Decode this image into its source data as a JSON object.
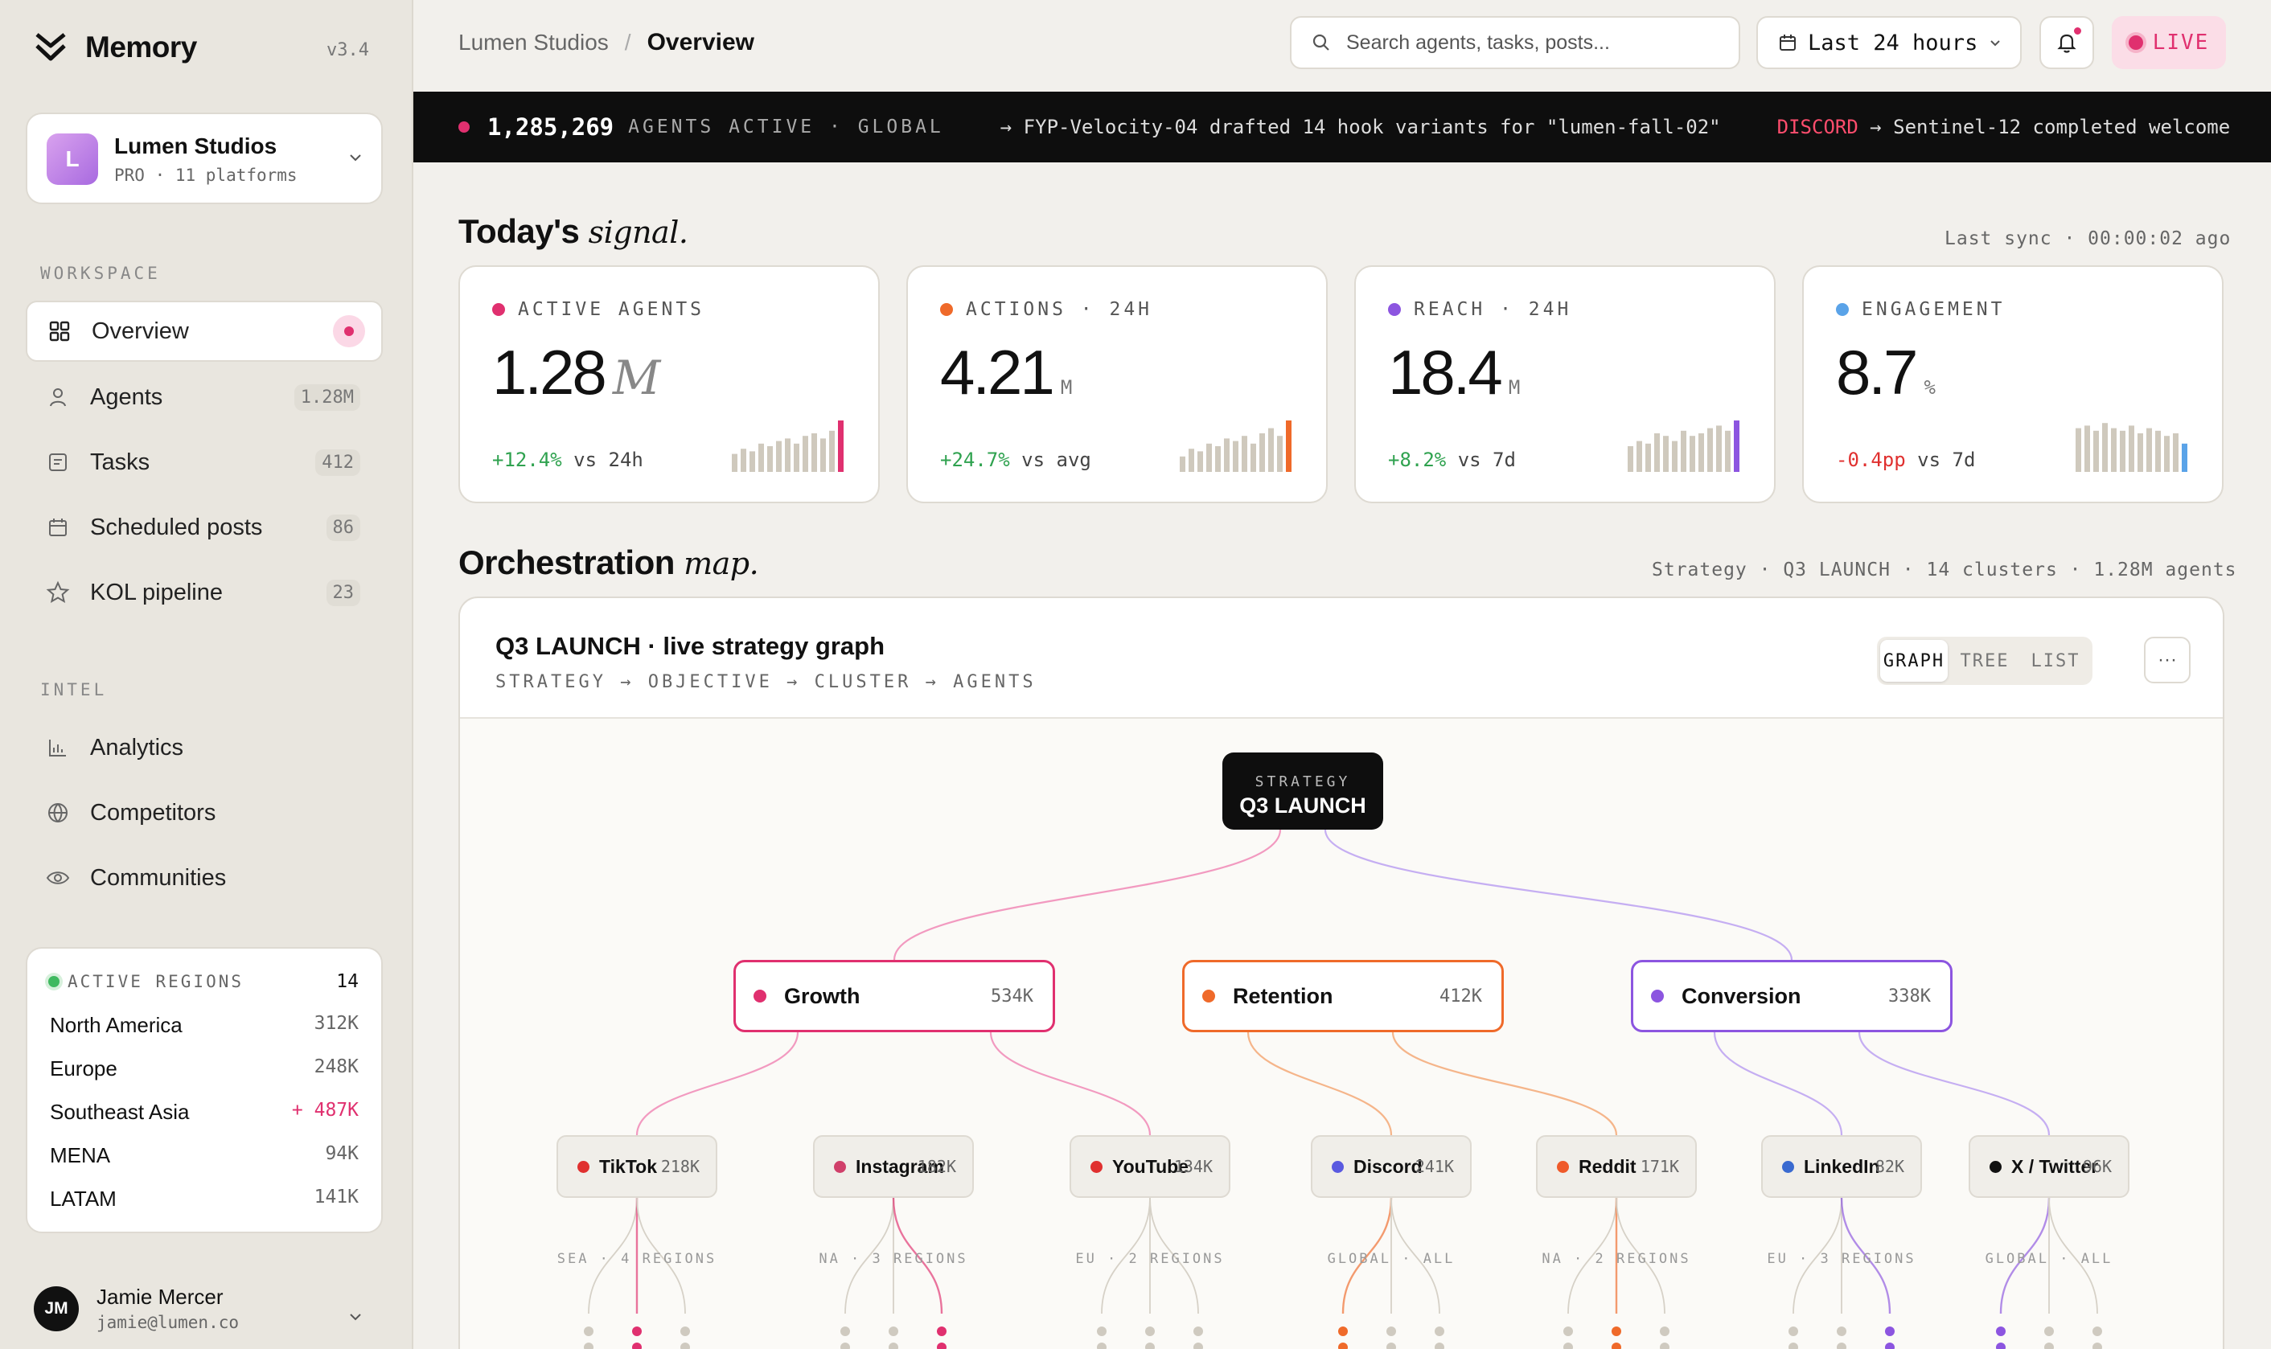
{
  "sidebar": {
    "brand": "Memory",
    "version": "v3.4",
    "org": {
      "initial": "L",
      "name": "Lumen Studios",
      "plan": "PRO · 11 platforms"
    },
    "workspace_label": "WORKSPACE",
    "workspace": [
      {
        "label": "Overview",
        "icon": "grid-icon",
        "count": ""
      },
      {
        "label": "Agents",
        "icon": "user-icon",
        "count": "1.28M"
      },
      {
        "label": "Tasks",
        "icon": "task-icon",
        "count": "412"
      },
      {
        "label": "Scheduled posts",
        "icon": "calendar-icon",
        "count": "86"
      },
      {
        "label": "KOL pipeline",
        "icon": "star-icon",
        "count": "23"
      }
    ],
    "intel_label": "INTEL",
    "intel": [
      {
        "label": "Analytics",
        "icon": "bar-chart-icon"
      },
      {
        "label": "Competitors",
        "icon": "globe-icon"
      },
      {
        "label": "Communities",
        "icon": "eye-icon"
      }
    ],
    "regions": {
      "title": "ACTIVE REGIONS",
      "count": "14",
      "rows": [
        {
          "name": "North America",
          "value": "312K"
        },
        {
          "name": "Europe",
          "value": "248K"
        },
        {
          "name": "Southeast Asia",
          "value": "+ 487K"
        },
        {
          "name": "MENA",
          "value": "94K"
        },
        {
          "name": "LATAM",
          "value": "141K"
        }
      ]
    },
    "user": {
      "initials": "JM",
      "name": "Jamie Mercer",
      "email": "jamie@lumen.co"
    }
  },
  "header": {
    "breadcrumb_root": "Lumen Studios",
    "breadcrumb_sep": "/",
    "breadcrumb_current": "Overview",
    "search_placeholder": "Search agents, tasks, posts...",
    "range": "Last 24 hours",
    "live": "LIVE"
  },
  "ticker": {
    "count": "1,285,269",
    "label": "AGENTS ACTIVE · GLOBAL",
    "event1": "→ FYP-Velocity-04 drafted 14 hook variants for \"lumen-fall-02\"",
    "event2_tag": "DISCORD",
    "event2": "→ Sentinel-12 completed welcome"
  },
  "signal": {
    "title_a": "Today's",
    "title_b": "signal.",
    "sync": "Last sync · 00:00:02 ago",
    "cards": [
      {
        "label": "ACTIVE AGENTS",
        "value": "1.28",
        "unit": "M",
        "delta": "+12.4%",
        "cmp": "vs 24h",
        "color": "#e0306f",
        "spark": [
          0.35,
          0.45,
          0.4,
          0.55,
          0.5,
          0.6,
          0.65,
          0.55,
          0.7,
          0.75,
          0.65,
          0.8,
          1.0
        ]
      },
      {
        "label": "ACTIONS · 24H",
        "value": "4.21",
        "unit": "M",
        "delta": "+24.7%",
        "cmp": "vs avg",
        "color": "#ef6a2a",
        "spark": [
          0.3,
          0.45,
          0.4,
          0.55,
          0.5,
          0.65,
          0.6,
          0.7,
          0.55,
          0.75,
          0.85,
          0.7,
          1.0
        ]
      },
      {
        "label": "REACH · 24H",
        "value": "18.4",
        "unit": "M",
        "delta": "+8.2%",
        "cmp": "vs 7d",
        "color": "#8c55e0",
        "spark": [
          0.5,
          0.6,
          0.55,
          0.75,
          0.7,
          0.6,
          0.8,
          0.7,
          0.75,
          0.85,
          0.9,
          0.8,
          1.0
        ]
      },
      {
        "label": "ENGAGEMENT",
        "value": "8.7",
        "unit": "%",
        "delta": "-0.4pp",
        "cmp": "vs 7d",
        "color": "#5aa3e8",
        "spark": [
          0.85,
          0.9,
          0.8,
          0.95,
          0.85,
          0.8,
          0.9,
          0.75,
          0.85,
          0.8,
          0.7,
          0.75,
          0.55
        ]
      }
    ]
  },
  "orchestration": {
    "title_a": "Orchestration",
    "title_b": "map.",
    "meta": "Strategy · Q3 LAUNCH · 14 clusters · 1.28M agents",
    "panel_title": "Q3 LAUNCH · live strategy graph",
    "panel_sub": "STRATEGY → OBJECTIVE → CLUSTER → AGENTS",
    "views": [
      "GRAPH",
      "TREE",
      "LIST"
    ],
    "more": "···",
    "strategy_label": "STRATEGY",
    "strategy_name": "Q3 LAUNCH",
    "objectives": [
      {
        "name": "Growth",
        "count": "534K",
        "color": "#e0306f"
      },
      {
        "name": "Retention",
        "count": "412K",
        "color": "#ef6a2a"
      },
      {
        "name": "Conversion",
        "count": "338K",
        "color": "#8c55e0"
      }
    ],
    "clusters": [
      {
        "name": "TikTok",
        "count": "218K",
        "color": "#e0302f",
        "region": "SEA · 4 REGIONS"
      },
      {
        "name": "Instagram",
        "count": "182K",
        "color": "#d0406a",
        "region": "NA · 3 REGIONS"
      },
      {
        "name": "YouTube",
        "count": "134K",
        "color": "#e0302f",
        "region": "EU · 2 REGIONS"
      },
      {
        "name": "Discord",
        "count": "241K",
        "color": "#5a5ae0",
        "region": "GLOBAL · ALL"
      },
      {
        "name": "Reddit",
        "count": "171K",
        "color": "#ef5a2a",
        "region": "NA · 2 REGIONS"
      },
      {
        "name": "LinkedIn",
        "count": "82K",
        "color": "#3a6ad0",
        "region": "EU · 3 REGIONS"
      },
      {
        "name": "X / Twitter",
        "count": "96K",
        "color": "#111111",
        "region": "GLOBAL · ALL"
      }
    ]
  }
}
